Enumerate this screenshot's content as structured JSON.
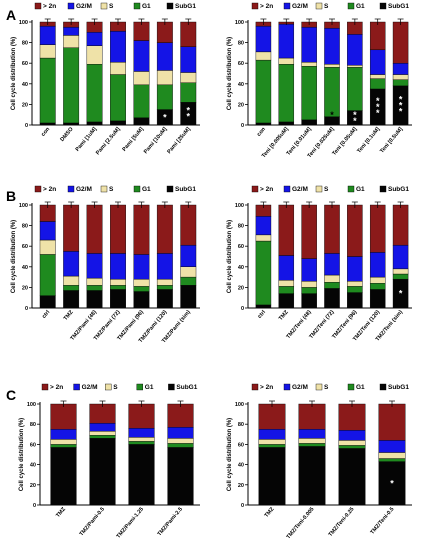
{
  "legend": [
    {
      "label": "> 2n",
      "color": "#8b1a1a"
    },
    {
      "label": "G2/M",
      "color": "#1414e6"
    },
    {
      "label": "S",
      "color": "#efe2a8"
    },
    {
      "label": "G1",
      "color": "#1f8a1f"
    },
    {
      "label": "SubG1",
      "color": "#050505"
    }
  ],
  "chart_data": [
    {
      "panel": "A",
      "type": "bar",
      "stacked": true,
      "ylabel": "Cell cycle distribution (%)",
      "ylim": [
        0,
        100
      ],
      "yticks": [
        0,
        20,
        40,
        60,
        80,
        100
      ],
      "categories": [
        "con",
        "DMSO",
        "Pami [1uM]",
        "Pami [2.5uM]",
        "Pami [5uM]",
        "Pami [10uM]",
        "Pami [25uM]"
      ],
      "series": [
        {
          "name": "SubG1",
          "values": [
            2,
            2,
            3,
            4,
            7,
            15,
            22
          ]
        },
        {
          "name": "G1",
          "values": [
            63,
            73,
            56,
            45,
            32,
            24,
            19
          ]
        },
        {
          "name": "S",
          "values": [
            13,
            12,
            18,
            12,
            13,
            14,
            10
          ]
        },
        {
          "name": "G2/M",
          "values": [
            18,
            8,
            13,
            30,
            30,
            27,
            25
          ]
        },
        {
          "name": "> 2n",
          "values": [
            4,
            5,
            10,
            9,
            18,
            20,
            24
          ]
        }
      ],
      "stars": [
        "",
        "",
        "",
        "",
        "",
        "*",
        "**"
      ]
    },
    {
      "panel": "A2",
      "type": "bar",
      "stacked": true,
      "ylabel": "Cell cycle distribution (%)",
      "ylim": [
        0,
        100
      ],
      "yticks": [
        0,
        20,
        40,
        60,
        80,
        100
      ],
      "categories": [
        "con",
        "Teni [0.005uM]",
        "Teni [0.01uM]",
        "Teni [0.025uM]",
        "Teni [0.05uM]",
        "Teni [0.1uM]",
        "Teni [0.5uM]"
      ],
      "series": [
        {
          "name": "SubG1",
          "values": [
            2,
            3,
            5,
            8,
            14,
            35,
            38
          ]
        },
        {
          "name": "G1",
          "values": [
            61,
            56,
            52,
            48,
            42,
            10,
            6
          ]
        },
        {
          "name": "S",
          "values": [
            8,
            6,
            4,
            3,
            2,
            4,
            5
          ]
        },
        {
          "name": "G2/M",
          "values": [
            25,
            33,
            34,
            35,
            30,
            24,
            11
          ]
        },
        {
          "name": "> 2n",
          "values": [
            4,
            2,
            5,
            6,
            12,
            27,
            40
          ]
        }
      ],
      "stars": [
        "",
        "",
        "",
        "*",
        "**",
        "***",
        "***"
      ]
    },
    {
      "panel": "B",
      "type": "bar",
      "stacked": true,
      "ylabel": "Cell cycle distribution (%)",
      "ylim": [
        0,
        100
      ],
      "yticks": [
        0,
        20,
        40,
        60,
        80,
        100
      ],
      "categories": [
        "ctrl",
        "TMZ",
        "TMZ/Pami (48)",
        "TMZ/Pami (72)",
        "TMZ/Pami (96)",
        "TMZ/Pami (120)",
        "TMZ/Pami (sim)"
      ],
      "series": [
        {
          "name": "SubG1",
          "values": [
            12,
            17,
            17,
            18,
            16,
            18,
            22
          ]
        },
        {
          "name": "G1",
          "values": [
            40,
            5,
            5,
            4,
            5,
            4,
            8
          ]
        },
        {
          "name": "S",
          "values": [
            14,
            9,
            7,
            6,
            7,
            6,
            10
          ]
        },
        {
          "name": "G2/M",
          "values": [
            18,
            24,
            24,
            25,
            24,
            25,
            21
          ]
        },
        {
          "name": "> 2n",
          "values": [
            16,
            45,
            47,
            47,
            48,
            47,
            39
          ]
        }
      ],
      "stars": [
        "",
        "",
        "",
        "",
        "",
        "",
        ""
      ]
    },
    {
      "panel": "B2",
      "type": "bar",
      "stacked": true,
      "ylabel": "Cell cycle distribution (%)",
      "ylim": [
        0,
        100
      ],
      "yticks": [
        0,
        20,
        40,
        60,
        80,
        100
      ],
      "categories": [
        "ctrl",
        "TMZ",
        "TMZ/Teni (48)",
        "TMZ/Teni (72)",
        "TMZ/Teni (96)",
        "TMZ/Teni (120)",
        "TMZ/Teni (sim)"
      ],
      "series": [
        {
          "name": "SubG1",
          "values": [
            3,
            14,
            14,
            19,
            15,
            18,
            28
          ]
        },
        {
          "name": "G1",
          "values": [
            62,
            7,
            6,
            6,
            6,
            6,
            5
          ]
        },
        {
          "name": "S",
          "values": [
            6,
            6,
            6,
            7,
            5,
            6,
            5
          ]
        },
        {
          "name": "G2/M",
          "values": [
            18,
            24,
            22,
            21,
            24,
            24,
            23
          ]
        },
        {
          "name": "> 2n",
          "values": [
            11,
            49,
            52,
            47,
            50,
            46,
            39
          ]
        }
      ],
      "stars": [
        "",
        "",
        "",
        "",
        "",
        "",
        "*"
      ]
    },
    {
      "panel": "C",
      "type": "bar",
      "stacked": true,
      "ylabel": "Cell cycle distribution (%)",
      "ylim": [
        0,
        100
      ],
      "yticks": [
        0,
        20,
        40,
        60,
        80,
        100
      ],
      "categories": [
        "TMZ",
        "TMZ/Pami-0.5",
        "TMZ/Pami-1.25",
        "TMZ/Pami-2.5"
      ],
      "series": [
        {
          "name": "SubG1",
          "values": [
            57,
            66,
            60,
            57
          ]
        },
        {
          "name": "G1",
          "values": [
            3,
            3,
            3,
            4
          ]
        },
        {
          "name": "S",
          "values": [
            5,
            4,
            4,
            5
          ]
        },
        {
          "name": "G2/M",
          "values": [
            10,
            8,
            9,
            11
          ]
        },
        {
          "name": "> 2n",
          "values": [
            25,
            19,
            24,
            23
          ]
        }
      ],
      "stars": [
        "",
        "",
        "",
        ""
      ]
    },
    {
      "panel": "C2",
      "type": "bar",
      "stacked": true,
      "ylabel": "Cell cycle distribution (%)",
      "ylim": [
        0,
        100
      ],
      "yticks": [
        0,
        20,
        40,
        60,
        80,
        100
      ],
      "categories": [
        "TMZ",
        "TMZ/Teni-0.005",
        "TMZ/Teni-0.25",
        "TMZ/Teni-0.5"
      ],
      "series": [
        {
          "name": "SubG1",
          "values": [
            57,
            58,
            56,
            43
          ]
        },
        {
          "name": "G1",
          "values": [
            3,
            3,
            3,
            3
          ]
        },
        {
          "name": "S",
          "values": [
            5,
            5,
            5,
            6
          ]
        },
        {
          "name": "G2/M",
          "values": [
            10,
            9,
            10,
            12
          ]
        },
        {
          "name": "> 2n",
          "values": [
            25,
            25,
            26,
            36
          ]
        }
      ],
      "stars": [
        "",
        "",
        "",
        "*"
      ]
    }
  ],
  "panel_labels": [
    "A",
    "B",
    "C"
  ]
}
